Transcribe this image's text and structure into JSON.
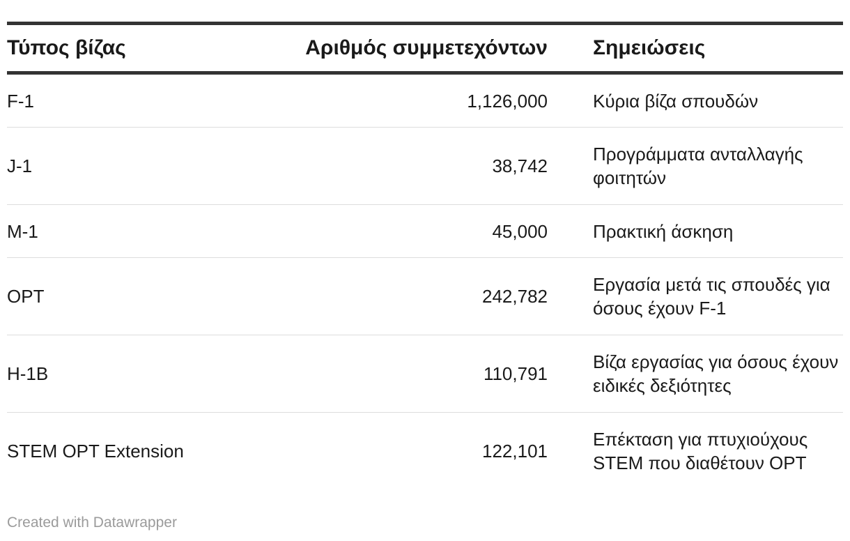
{
  "chart_data": {
    "type": "table",
    "columns": [
      "Τύπος βίζας",
      "Αριθμός συμμετεχόντων",
      "Σημειώσεις"
    ],
    "rows": [
      {
        "type": "F-1",
        "count": "1,126,000",
        "note": "Κύρια βίζα σπουδών"
      },
      {
        "type": "J-1",
        "count": "38,742",
        "note": "Προγράμματα ανταλλαγής φοιτητών"
      },
      {
        "type": "M-1",
        "count": "45,000",
        "note": "Πρακτική άσκηση"
      },
      {
        "type": "OPT",
        "count": "242,782",
        "note": "Εργασία μετά τις σπουδές για όσους έχουν F-1"
      },
      {
        "type": "H-1B",
        "count": "110,791",
        "note": "Βίζα εργασίας για όσους έχουν ειδικές δεξιότητες"
      },
      {
        "type": "STEM OPT Extension",
        "count": "122,101",
        "note": "Επέκταση για πτυχιούχους STEM που διαθέτουν OPT"
      }
    ]
  },
  "footer": {
    "credit": "Created with Datawrapper"
  }
}
